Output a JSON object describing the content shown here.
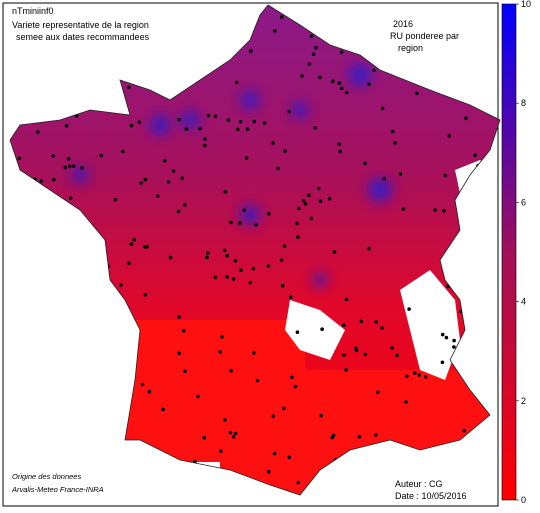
{
  "header": {
    "title": "nTminiinf0",
    "subtitle_lines": [
      "Variete representative de la region",
      "semee aux dates recommandees"
    ],
    "year": "2016",
    "weighting_lines": [
      "RU ponderee par",
      "region"
    ]
  },
  "footer": {
    "source_lines": [
      "Origine des donnees",
      "Arvalis-Meteo France-INRA"
    ],
    "author": "Auteur : CG",
    "date": "Date : 10/05/2016"
  },
  "colorbar": {
    "range": [
      0,
      10
    ],
    "ticks": [
      0,
      2,
      4,
      6,
      8,
      10
    ],
    "colors": [
      "#ff0000",
      "#a0105a",
      "#0000ff"
    ]
  }
}
